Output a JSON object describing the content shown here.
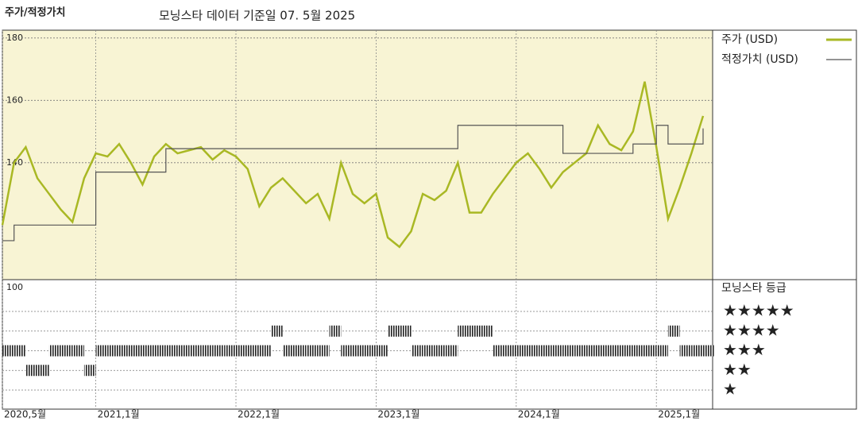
{
  "header": {
    "label": "주가/적정가치",
    "title": "모닝스타 데이터 기준일 07. 5월 2025"
  },
  "chart_data": {
    "type": "line",
    "x": [
      "2020-05",
      "2020-06",
      "2020-07",
      "2020-08",
      "2020-09",
      "2020-10",
      "2020-11",
      "2020-12",
      "2021-01",
      "2021-02",
      "2021-03",
      "2021-04",
      "2021-05",
      "2021-06",
      "2021-07",
      "2021-08",
      "2021-09",
      "2021-10",
      "2021-11",
      "2021-12",
      "2022-01",
      "2022-02",
      "2022-03",
      "2022-04",
      "2022-05",
      "2022-06",
      "2022-07",
      "2022-08",
      "2022-09",
      "2022-10",
      "2022-11",
      "2022-12",
      "2023-01",
      "2023-02",
      "2023-03",
      "2023-04",
      "2023-05",
      "2023-06",
      "2023-07",
      "2023-08",
      "2023-09",
      "2023-10",
      "2023-11",
      "2023-12",
      "2024-01",
      "2024-02",
      "2024-03",
      "2024-04",
      "2024-05",
      "2024-06",
      "2024-07",
      "2024-08",
      "2024-09",
      "2024-10",
      "2024-11",
      "2024-12",
      "2025-01",
      "2025-02",
      "2025-03",
      "2025-04",
      "2025-05"
    ],
    "series": [
      {
        "name": "주가 (USD)",
        "color": "#a9b824",
        "values": [
          120,
          140,
          145,
          135,
          130,
          125,
          121,
          135,
          143,
          142,
          146,
          140,
          133,
          142,
          146,
          143,
          144,
          145,
          141,
          144,
          142,
          138,
          126,
          132,
          135,
          131,
          127,
          130,
          122,
          140,
          130,
          127,
          130,
          116,
          113,
          118,
          130,
          128,
          131,
          140,
          124,
          124,
          130,
          135,
          140,
          143,
          138,
          132,
          137,
          140,
          143,
          152,
          146,
          144,
          150,
          166,
          145,
          122,
          132,
          143,
          155
        ]
      },
      {
        "name": "적정가치 (USD)",
        "color": "#555555",
        "values": [
          115,
          120,
          120,
          120,
          120,
          120,
          120,
          120,
          137,
          137,
          137,
          137,
          137,
          137,
          144.5,
          144.5,
          144.5,
          144.5,
          144.5,
          144.5,
          144.5,
          144.5,
          144.5,
          144.5,
          144.5,
          144.5,
          144.5,
          144.5,
          144.5,
          144.5,
          144.5,
          144.5,
          144.5,
          144.5,
          144.5,
          144.5,
          144.5,
          144.5,
          144.5,
          152,
          152,
          152,
          152,
          152,
          152,
          152,
          152,
          152,
          143,
          143,
          143,
          143,
          143,
          143,
          146,
          146,
          152,
          146,
          146,
          146,
          151
        ]
      }
    ],
    "ylim": [
      102.5,
      182.5
    ],
    "yticks": [
      100,
      140,
      160,
      180
    ],
    "xticks": [
      {
        "value": "2020-05",
        "label": "2020,5월"
      },
      {
        "value": "2021-01",
        "label": "2021,1월"
      },
      {
        "value": "2022-01",
        "label": "2022,1월"
      },
      {
        "value": "2023-01",
        "label": "2023,1월"
      },
      {
        "value": "2024-01",
        "label": "2024,1월"
      },
      {
        "value": "2025-01",
        "label": "2025,1월"
      }
    ],
    "grid": true,
    "rating": {
      "name": "모닝스타 등급",
      "levels": [
        {
          "value": 5,
          "label": "★★★★★"
        },
        {
          "value": 4,
          "label": "★★★★"
        },
        {
          "value": 3,
          "label": "★★★"
        },
        {
          "value": 2,
          "label": "★★"
        },
        {
          "value": 1,
          "label": "★"
        }
      ],
      "values": [
        3,
        3,
        2,
        2,
        3,
        3,
        3,
        2,
        3,
        3,
        3,
        3,
        3,
        3,
        3,
        3,
        3,
        3,
        3,
        3,
        3,
        3,
        3,
        4,
        3,
        3,
        3,
        3,
        4,
        3,
        3,
        3,
        3,
        4,
        4,
        3,
        3,
        3,
        3,
        4,
        4,
        4,
        3,
        3,
        3,
        3,
        3,
        3,
        3,
        3,
        3,
        3,
        3,
        3,
        3,
        3,
        3,
        4,
        3,
        3,
        3
      ]
    }
  }
}
